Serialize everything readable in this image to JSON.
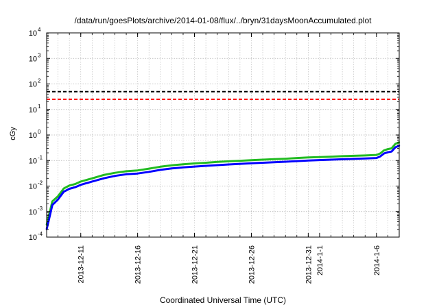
{
  "chart_data": {
    "type": "line",
    "title": "/data/run/goesPlots/archive/2014-01-08/flux/../bryn/31daysMoonAccumulated.plot",
    "xlabel": "Coordinated Universal Time (UTC)",
    "ylabel": "cGy",
    "yscale": "log",
    "ylim": [
      0.0001,
      10000
    ],
    "xlim": [
      "2013-12-08",
      "2014-01-08"
    ],
    "grid": true,
    "x_ticks": [
      {
        "label": "2013-12-11",
        "date": "2013-12-11"
      },
      {
        "label": "2013-12-16",
        "date": "2013-12-16"
      },
      {
        "label": "2013-12-21",
        "date": "2013-12-21"
      },
      {
        "label": "2013-12-26",
        "date": "2013-12-26"
      },
      {
        "label": "2013-12-31",
        "date": "2013-12-31"
      },
      {
        "label": "2014-1-1",
        "date": "2014-01-01"
      },
      {
        "label": "2014-1-6",
        "date": "2014-01-06"
      }
    ],
    "y_ticks": [
      {
        "base": "10",
        "exp": "-4",
        "value": 0.0001
      },
      {
        "base": "10",
        "exp": "-3",
        "value": 0.001
      },
      {
        "base": "10",
        "exp": "-2",
        "value": 0.01
      },
      {
        "base": "10",
        "exp": "-1",
        "value": 0.1
      },
      {
        "base": "10",
        "exp": "0",
        "value": 1
      },
      {
        "base": "10",
        "exp": "1",
        "value": 10
      },
      {
        "base": "10",
        "exp": "2",
        "value": 100
      },
      {
        "base": "10",
        "exp": "3",
        "value": 1000
      },
      {
        "base": "10",
        "exp": "4",
        "value": 10000
      }
    ],
    "reference_lines": [
      {
        "value": 50,
        "color": "#000000",
        "style": "dashed"
      },
      {
        "value": 25,
        "color": "#ff0000",
        "style": "dashed"
      }
    ],
    "series": [
      {
        "color": "#22bb22",
        "x": [
          "2013-12-08",
          "2013-12-08T12:00",
          "2013-12-09",
          "2013-12-09T12:00",
          "2013-12-10",
          "2013-12-10T12:00",
          "2013-12-11",
          "2013-12-12",
          "2013-12-13",
          "2013-12-14",
          "2013-12-15",
          "2013-12-16",
          "2013-12-17",
          "2013-12-18",
          "2013-12-19",
          "2013-12-20",
          "2013-12-21",
          "2013-12-22",
          "2013-12-23",
          "2013-12-24",
          "2013-12-25",
          "2013-12-26",
          "2013-12-27",
          "2013-12-28",
          "2013-12-29",
          "2013-12-30",
          "2013-12-31",
          "2014-01-01",
          "2014-01-02",
          "2014-01-03",
          "2014-01-04",
          "2014-01-05",
          "2014-01-06",
          "2014-01-06T08:00",
          "2014-01-06T16:00",
          "2014-01-07",
          "2014-01-07T08:00",
          "2014-01-07T16:00",
          "2014-01-08"
        ],
        "values": [
          0.0003,
          0.0025,
          0.004,
          0.008,
          0.0105,
          0.012,
          0.015,
          0.02,
          0.027,
          0.033,
          0.038,
          0.041,
          0.048,
          0.057,
          0.065,
          0.071,
          0.077,
          0.082,
          0.088,
          0.093,
          0.098,
          0.103,
          0.108,
          0.113,
          0.118,
          0.125,
          0.132,
          0.137,
          0.142,
          0.148,
          0.153,
          0.158,
          0.165,
          0.19,
          0.25,
          0.28,
          0.3,
          0.45,
          0.52
        ]
      },
      {
        "color": "#0000ff",
        "x": [
          "2013-12-08",
          "2013-12-08T12:00",
          "2013-12-09",
          "2013-12-09T12:00",
          "2013-12-10",
          "2013-12-10T12:00",
          "2013-12-11",
          "2013-12-12",
          "2013-12-13",
          "2013-12-14",
          "2013-12-15",
          "2013-12-16",
          "2013-12-17",
          "2013-12-18",
          "2013-12-19",
          "2013-12-20",
          "2013-12-21",
          "2013-12-22",
          "2013-12-23",
          "2013-12-24",
          "2013-12-25",
          "2013-12-26",
          "2013-12-27",
          "2013-12-28",
          "2013-12-29",
          "2013-12-30",
          "2013-12-31",
          "2014-01-01",
          "2014-01-02",
          "2014-01-03",
          "2014-01-04",
          "2014-01-05",
          "2014-01-06",
          "2014-01-06T08:00",
          "2014-01-06T16:00",
          "2014-01-07",
          "2014-01-07T08:00",
          "2014-01-07T16:00",
          "2014-01-08"
        ],
        "values": [
          0.0002,
          0.0018,
          0.003,
          0.006,
          0.0078,
          0.009,
          0.0112,
          0.015,
          0.02,
          0.025,
          0.029,
          0.031,
          0.036,
          0.043,
          0.049,
          0.054,
          0.058,
          0.062,
          0.066,
          0.07,
          0.074,
          0.078,
          0.082,
          0.086,
          0.09,
          0.095,
          0.1,
          0.104,
          0.108,
          0.112,
          0.116,
          0.12,
          0.125,
          0.145,
          0.19,
          0.21,
          0.225,
          0.33,
          0.38
        ]
      }
    ]
  }
}
